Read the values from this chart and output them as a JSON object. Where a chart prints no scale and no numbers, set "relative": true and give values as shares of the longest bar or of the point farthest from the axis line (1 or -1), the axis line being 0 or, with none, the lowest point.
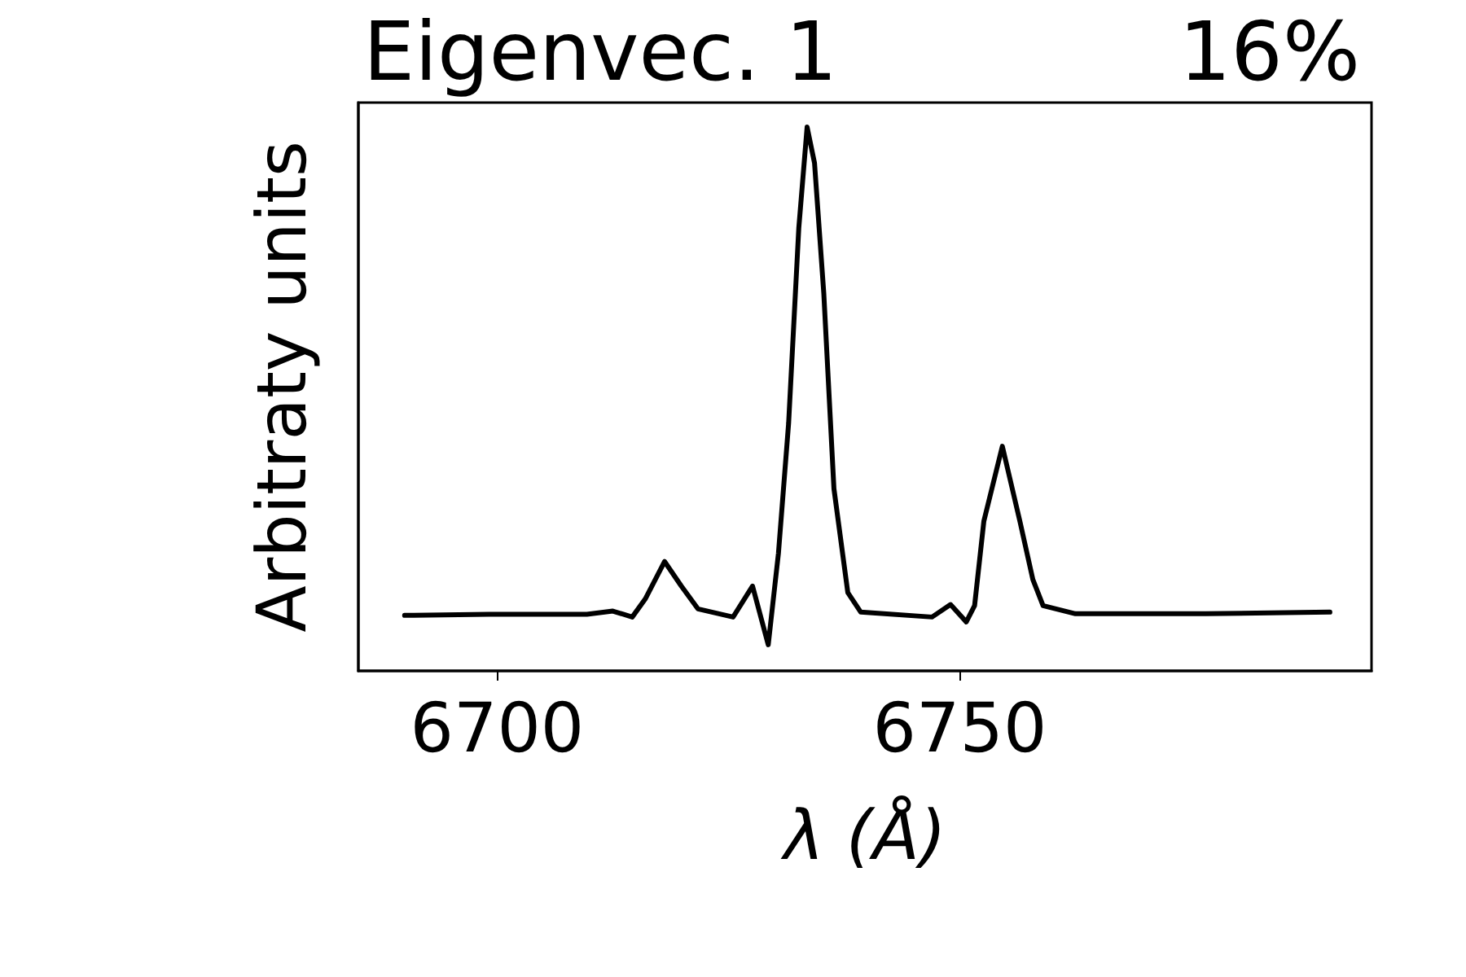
{
  "chart_data": {
    "type": "line",
    "title": "Eigenvec. 1",
    "annotations": [
      "16%"
    ],
    "xlabel": "λ (Å)",
    "ylabel": "Arbitraty units",
    "relative": true,
    "xlim": [
      6685.0,
      6794.5
    ],
    "xticks": [
      6700,
      6750
    ],
    "marker": "none",
    "line_style": "solid",
    "x": [
      6690.0,
      6699.1,
      6709.7,
      6712.5,
      6714.6,
      6716.0,
      6718.1,
      6719.9,
      6721.7,
      6725.5,
      6727.6,
      6729.3,
      6730.4,
      6731.5,
      6732.6,
      6733.5,
      6734.3,
      6735.3,
      6736.4,
      6737.9,
      6739.3,
      6747.0,
      6749.0,
      6750.7,
      6751.6,
      6752.6,
      6754.6,
      6756.5,
      6757.9,
      6759.0,
      6762.5,
      6776.6,
      6790.0
    ],
    "series": [
      {
        "color": "#000000",
        "values": [
          0.102,
          0.104,
          0.104,
          0.11,
          0.099,
          0.132,
          0.201,
          0.156,
          0.114,
          0.099,
          0.156,
          0.048,
          0.216,
          0.455,
          0.814,
          1,
          0.934,
          0.695,
          0.335,
          0.144,
          0.108,
          0.099,
          0.122,
          0.09,
          0.12,
          0.275,
          0.413,
          0.275,
          0.168,
          0.12,
          0.105,
          0.105,
          0.108
        ]
      }
    ]
  }
}
